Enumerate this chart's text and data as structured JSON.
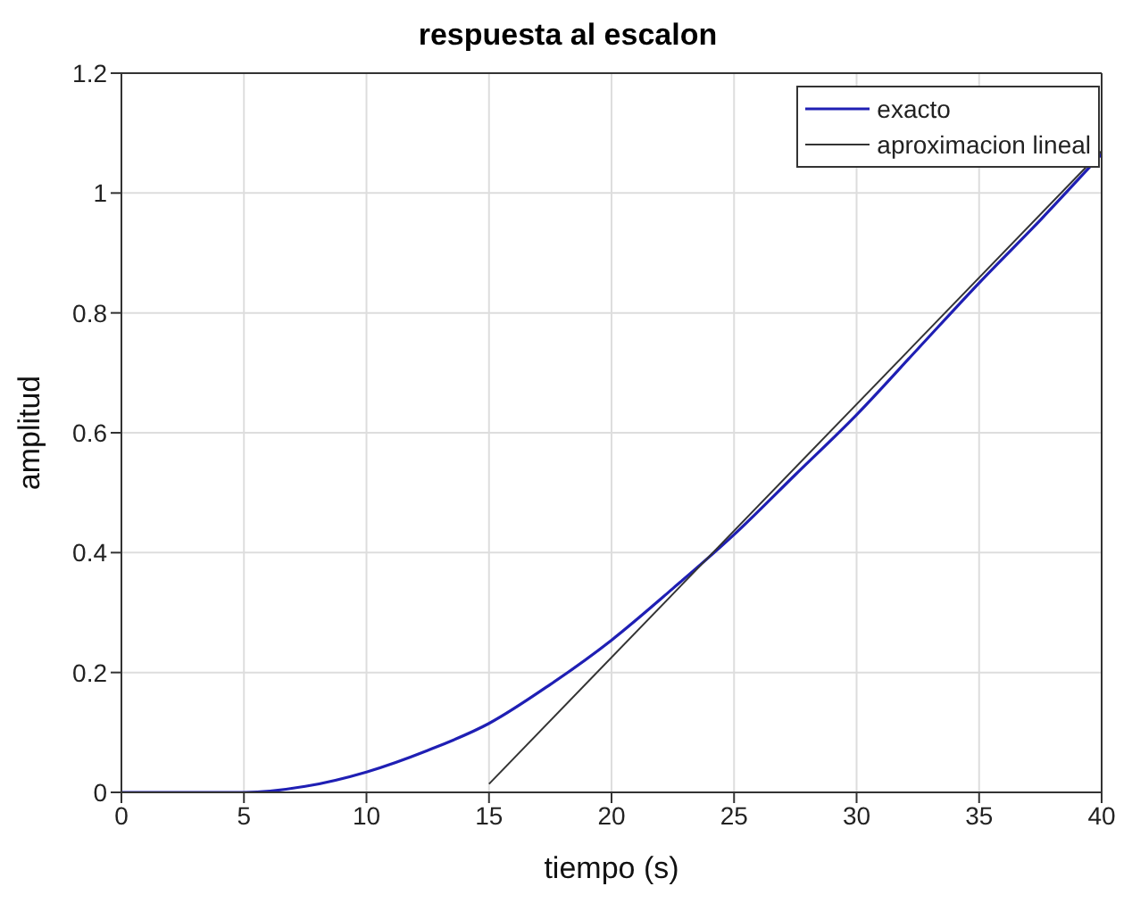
{
  "chart_data": {
    "type": "line",
    "title": "respuesta al escalon",
    "xlabel": "tiempo (s)",
    "ylabel": "amplitud",
    "xlim": [
      0,
      40
    ],
    "xticks": [
      0,
      5,
      10,
      15,
      20,
      25,
      30,
      35,
      40
    ],
    "ylim": [
      0,
      1.2
    ],
    "yticks": [
      0,
      0.2,
      0.4,
      0.6,
      0.8,
      1.0,
      1.2
    ],
    "grid": true,
    "legend": "top right",
    "marker": "none",
    "line_style": "solid",
    "series": [
      {
        "name": "exacto",
        "color": "#1f1fb4",
        "x": [
          0,
          5,
          7.5,
          10,
          12.5,
          15,
          17.5,
          20,
          22.5,
          25,
          27.5,
          30,
          32.5,
          35,
          37.5,
          40
        ],
        "values": [
          0,
          0,
          0.01,
          0.034,
          0.07,
          0.115,
          0.18,
          0.254,
          0.34,
          0.43,
          0.53,
          0.63,
          0.74,
          0.85,
          0.955,
          1.065
        ]
      },
      {
        "name": "aproximacion lineal",
        "color": "#333333",
        "x": [
          15,
          40
        ],
        "values": [
          0.014,
          1.07
        ]
      }
    ]
  }
}
